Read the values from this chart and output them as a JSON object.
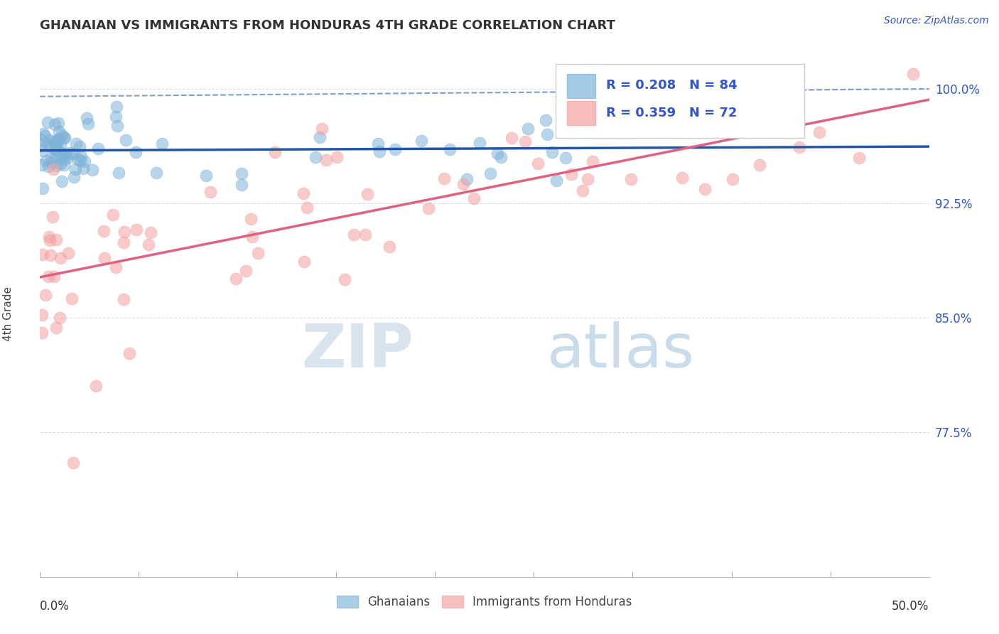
{
  "title": "GHANAIAN VS IMMIGRANTS FROM HONDURAS 4TH GRADE CORRELATION CHART",
  "source": "Source: ZipAtlas.com",
  "ylabel": "4th Grade",
  "xlim": [
    0.0,
    50.0
  ],
  "ylim": [
    68.0,
    102.5
  ],
  "yticks": [
    77.5,
    85.0,
    92.5,
    100.0
  ],
  "ytick_labels": [
    "77.5%",
    "85.0%",
    "92.5%",
    "100.0%"
  ],
  "blue_color": "#7EB3D8",
  "pink_color": "#F4A0A0",
  "blue_line_color": "#2255AA",
  "pink_line_color": "#E06080",
  "blue_dashed_color": "#4477BB",
  "R_blue": 0.208,
  "N_blue": 84,
  "R_pink": 0.359,
  "N_pink": 72,
  "legend_label_blue": "Ghanaians",
  "legend_label_pink": "Immigrants from Honduras",
  "watermark_zip": "ZIP",
  "watermark_atlas": "atlas",
  "legend_text_color": "#3355CC",
  "title_color": "#333333",
  "source_color": "#3355CC",
  "ylabel_color": "#444444",
  "xtick_color": "#333333",
  "ytick_color": "#3355CC",
  "grid_color": "#CCCCCC"
}
